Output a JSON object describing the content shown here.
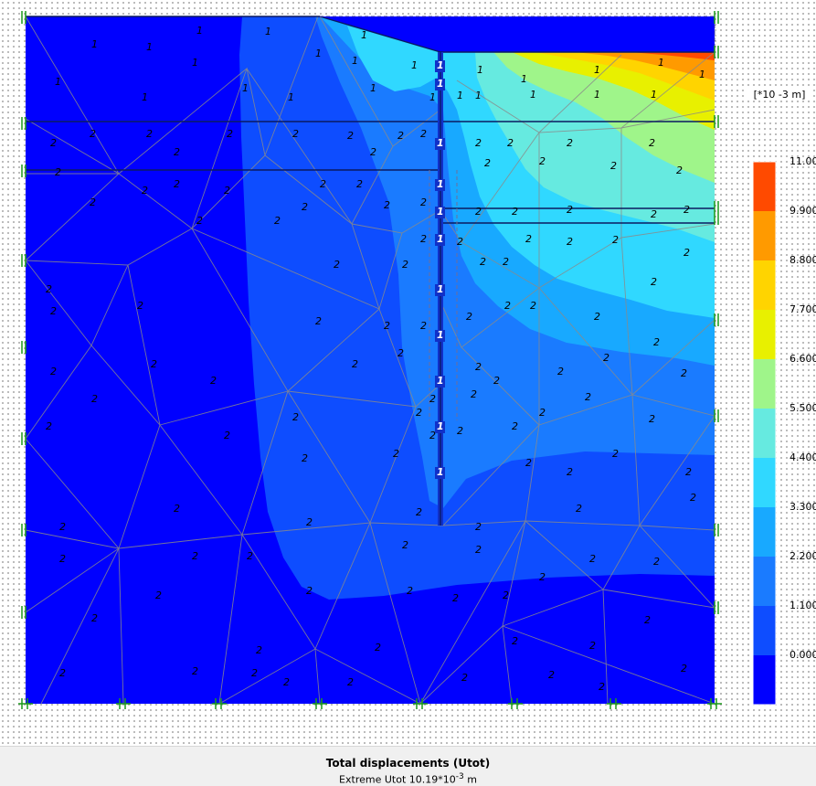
{
  "plot": {
    "unit_label": "[*10 -3 m]",
    "element_group_labels": [
      "1",
      "2"
    ]
  },
  "legend": {
    "values": [
      "11.000",
      "9.900",
      "8.800",
      "7.700",
      "6.600",
      "5.500",
      "4.400",
      "3.300",
      "2.200",
      "1.100",
      "0.000"
    ],
    "colors": [
      "#ff4a00",
      "#ff9a00",
      "#ffd400",
      "#e8f000",
      "#9ff58a",
      "#66eae0",
      "#30d8ff",
      "#18a9ff",
      "#1a7bff",
      "#0e4dff",
      "#0000ff"
    ]
  },
  "footer": {
    "title": "Total displacements (Utot)",
    "subtitle_prefix": "Extreme Utot 10.19*10",
    "subtitle_exp": "-3",
    "subtitle_unit": "m"
  }
}
